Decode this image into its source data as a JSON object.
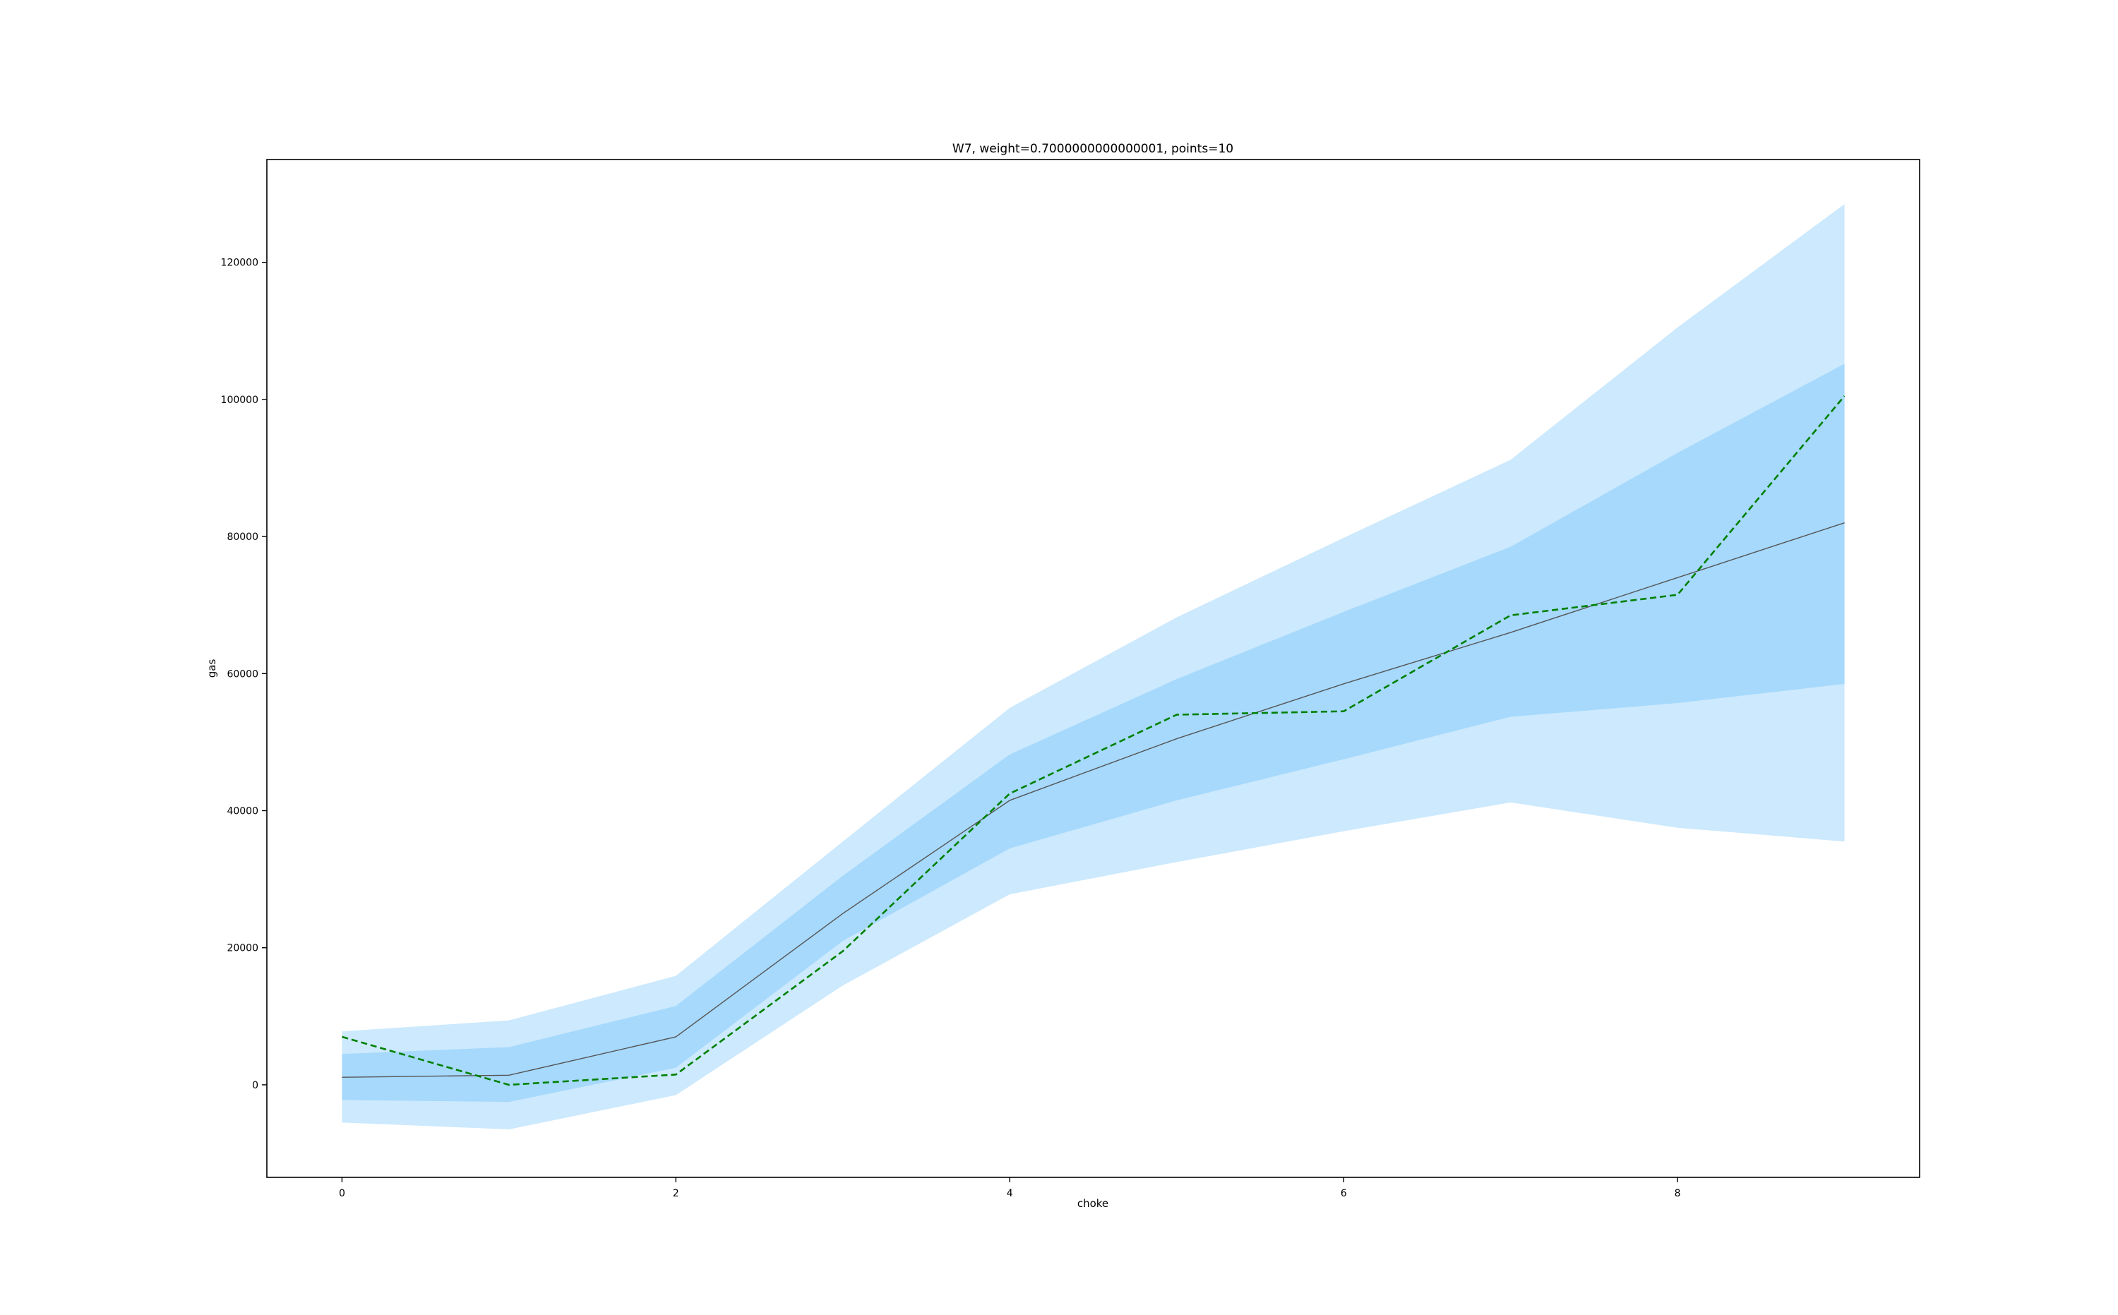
{
  "chart_data": {
    "type": "line",
    "title": "W7, weight=0.7000000000000001, points=10",
    "xlabel": "choke",
    "ylabel": "gas",
    "xlim": [
      -0.45,
      9.45
    ],
    "ylim": [
      -13500,
      135000
    ],
    "x_ticks": [
      0,
      2,
      4,
      6,
      8
    ],
    "y_ticks": [
      0,
      20000,
      40000,
      60000,
      80000,
      100000,
      120000
    ],
    "grid": false,
    "legend": "none",
    "x": [
      0,
      1,
      2,
      3,
      4,
      5,
      6,
      7,
      8,
      9
    ],
    "series": [
      {
        "kind": "band-outer",
        "color": "#cce9fd",
        "lower": [
          -5500,
          -6500,
          -1500,
          14500,
          27800,
          32500,
          37000,
          41200,
          37500,
          35500
        ],
        "upper": [
          7800,
          9400,
          15900,
          35500,
          55000,
          68200,
          79800,
          91200,
          110500,
          128500
        ]
      },
      {
        "kind": "band-inner",
        "color": "#a6d9fc",
        "lower": [
          -2200,
          -2500,
          2500,
          21000,
          34500,
          41500,
          47500,
          53700,
          55700,
          58500
        ],
        "upper": [
          4500,
          5500,
          11500,
          30500,
          48200,
          59200,
          69000,
          78500,
          92200,
          105200
        ]
      },
      {
        "kind": "line",
        "color": "#555555",
        "values": [
          1100,
          1400,
          7000,
          25000,
          41500,
          50500,
          58500,
          66000,
          74000,
          82000
        ]
      },
      {
        "kind": "dashed-line",
        "color": "#008000",
        "values": [
          7000,
          0,
          1500,
          19500,
          42500,
          54000,
          54500,
          68500,
          71500,
          100500
        ]
      }
    ]
  }
}
